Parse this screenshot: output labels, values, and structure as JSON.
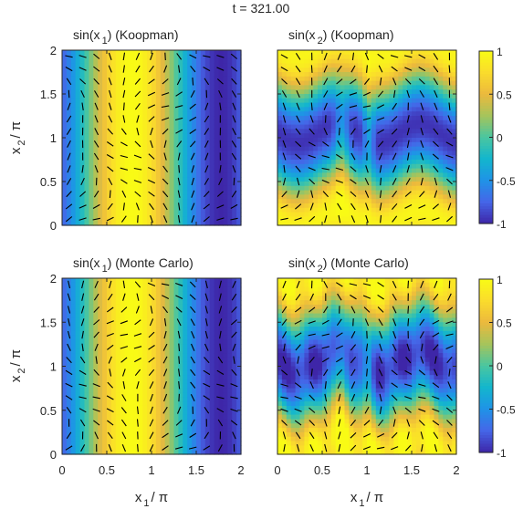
{
  "figure_title": "t = 321.00",
  "colorbar": {
    "ticks": [
      "1",
      "0.5",
      "0",
      "-0.5",
      "-1"
    ],
    "colormap": "parula",
    "colors": [
      "#3e26a8",
      "#4566e8",
      "#1f93e7",
      "#13b6cd",
      "#4ac6a0",
      "#a6c45b",
      "#ecb93d",
      "#fadc2c",
      "#f9fb15"
    ]
  },
  "chart_data": [
    {
      "type": "heatmap",
      "title": {
        "pre": "sin(x",
        "sub": "1",
        "post": ") (Koopman)"
      },
      "field": "sin(x1)",
      "xlim": [
        0,
        2
      ],
      "ylim": [
        0,
        2
      ],
      "clim": [
        -1,
        1
      ],
      "xticks": [
        "0",
        "0.5",
        "1",
        "1.5",
        "2"
      ],
      "yticks": [
        "2",
        "1.5",
        "1",
        "0.5",
        "0"
      ],
      "overlay": "vector field (black line segments)"
    },
    {
      "type": "heatmap",
      "title": {
        "pre": "sin(x",
        "sub": "2",
        "post": ") (Koopman)"
      },
      "field": "sin(x2)",
      "xlim": [
        0,
        2
      ],
      "ylim": [
        0,
        2
      ],
      "clim": [
        -1,
        1
      ],
      "xticks": [
        "0",
        "0.5",
        "1",
        "1.5",
        "2"
      ],
      "yticks": [
        "2",
        "1.5",
        "1",
        "0.5",
        "0"
      ],
      "overlay": "vector field (black line segments)"
    },
    {
      "type": "heatmap",
      "title": {
        "pre": "sin(x",
        "sub": "1",
        "post": ") (Monte Carlo)"
      },
      "field": "sin(x1)",
      "xlim": [
        0,
        2
      ],
      "ylim": [
        0,
        2
      ],
      "clim": [
        -1,
        1
      ],
      "xticks": [
        "0",
        "0.5",
        "1",
        "1.5",
        "2"
      ],
      "yticks": [
        "2",
        "1.5",
        "1",
        "0.5",
        "0"
      ],
      "overlay": "vector field (black line segments)"
    },
    {
      "type": "heatmap",
      "title": {
        "pre": "sin(x",
        "sub": "2",
        "post": ") (Monte Carlo)"
      },
      "field": "sin(x2)",
      "xlim": [
        0,
        2
      ],
      "ylim": [
        0,
        2
      ],
      "clim": [
        -1,
        1
      ],
      "xticks": [
        "0",
        "0.5",
        "1",
        "1.5",
        "2"
      ],
      "yticks": [
        "2",
        "1.5",
        "1",
        "0.5",
        "0"
      ],
      "overlay": "vector field (black line segments)"
    }
  ],
  "axis_labels": {
    "ylabel": {
      "pre": "x",
      "sub": "2",
      "post": "/ π"
    },
    "xlabel": {
      "pre": "x",
      "sub": "1",
      "post": "/ π"
    }
  }
}
